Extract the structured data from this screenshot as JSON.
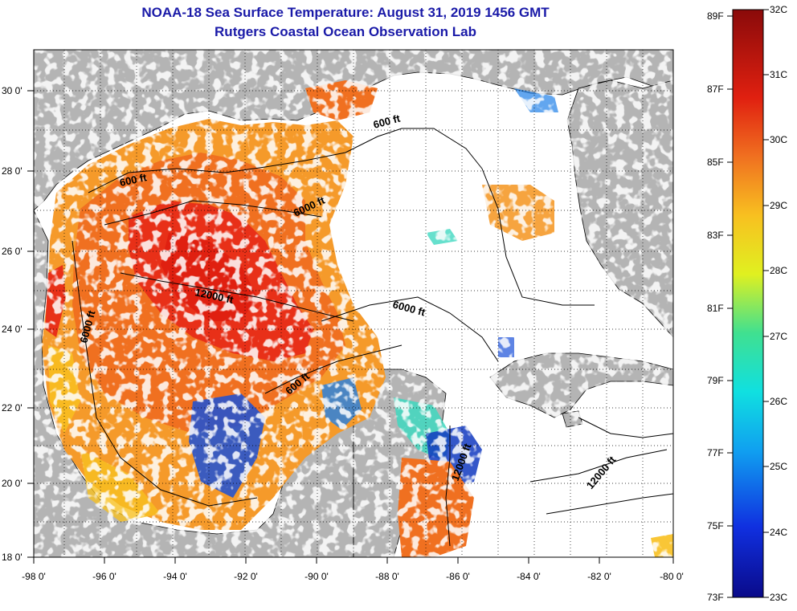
{
  "title": "NOAA-18 Sea Surface Temperature:  August 31, 2019 1456 GMT",
  "subtitle": "Rutgers Coastal Ocean Observation Lab",
  "longitude_labels": [
    "-98 0'",
    "-96 0'",
    "-94 0'",
    "-92 0'",
    "-90 0'",
    "-88 0'",
    "-86 0'",
    "-84 0'",
    "-82 0'",
    "-80 0'"
  ],
  "latitude_labels": [
    "30 0'",
    "28 0'",
    "26 0'",
    "24 0'",
    "22 0'",
    "20 0'",
    "18 0'"
  ],
  "contour_labels": [
    "600 ft",
    "600 ft",
    "6000 ft",
    "12000 ft",
    "6000 ft",
    "6000 ft",
    "600 ft",
    "12000 ft",
    "12000 ft"
  ],
  "colorbar": {
    "fahrenheit": [
      "89F",
      "87F",
      "85F",
      "83F",
      "81F",
      "79F",
      "77F",
      "75F",
      "73F"
    ],
    "celsius": [
      "32C",
      "31C",
      "30C",
      "29C",
      "28C",
      "27C",
      "26C",
      "25C",
      "24C",
      "23C"
    ]
  },
  "colors": {
    "title": "#1a1aa8",
    "land": "#b4b4b4",
    "cloud": "#ffffff",
    "warm_core": "#e83018",
    "warm": "#f07020",
    "orange": "#f59a2a"
  }
}
